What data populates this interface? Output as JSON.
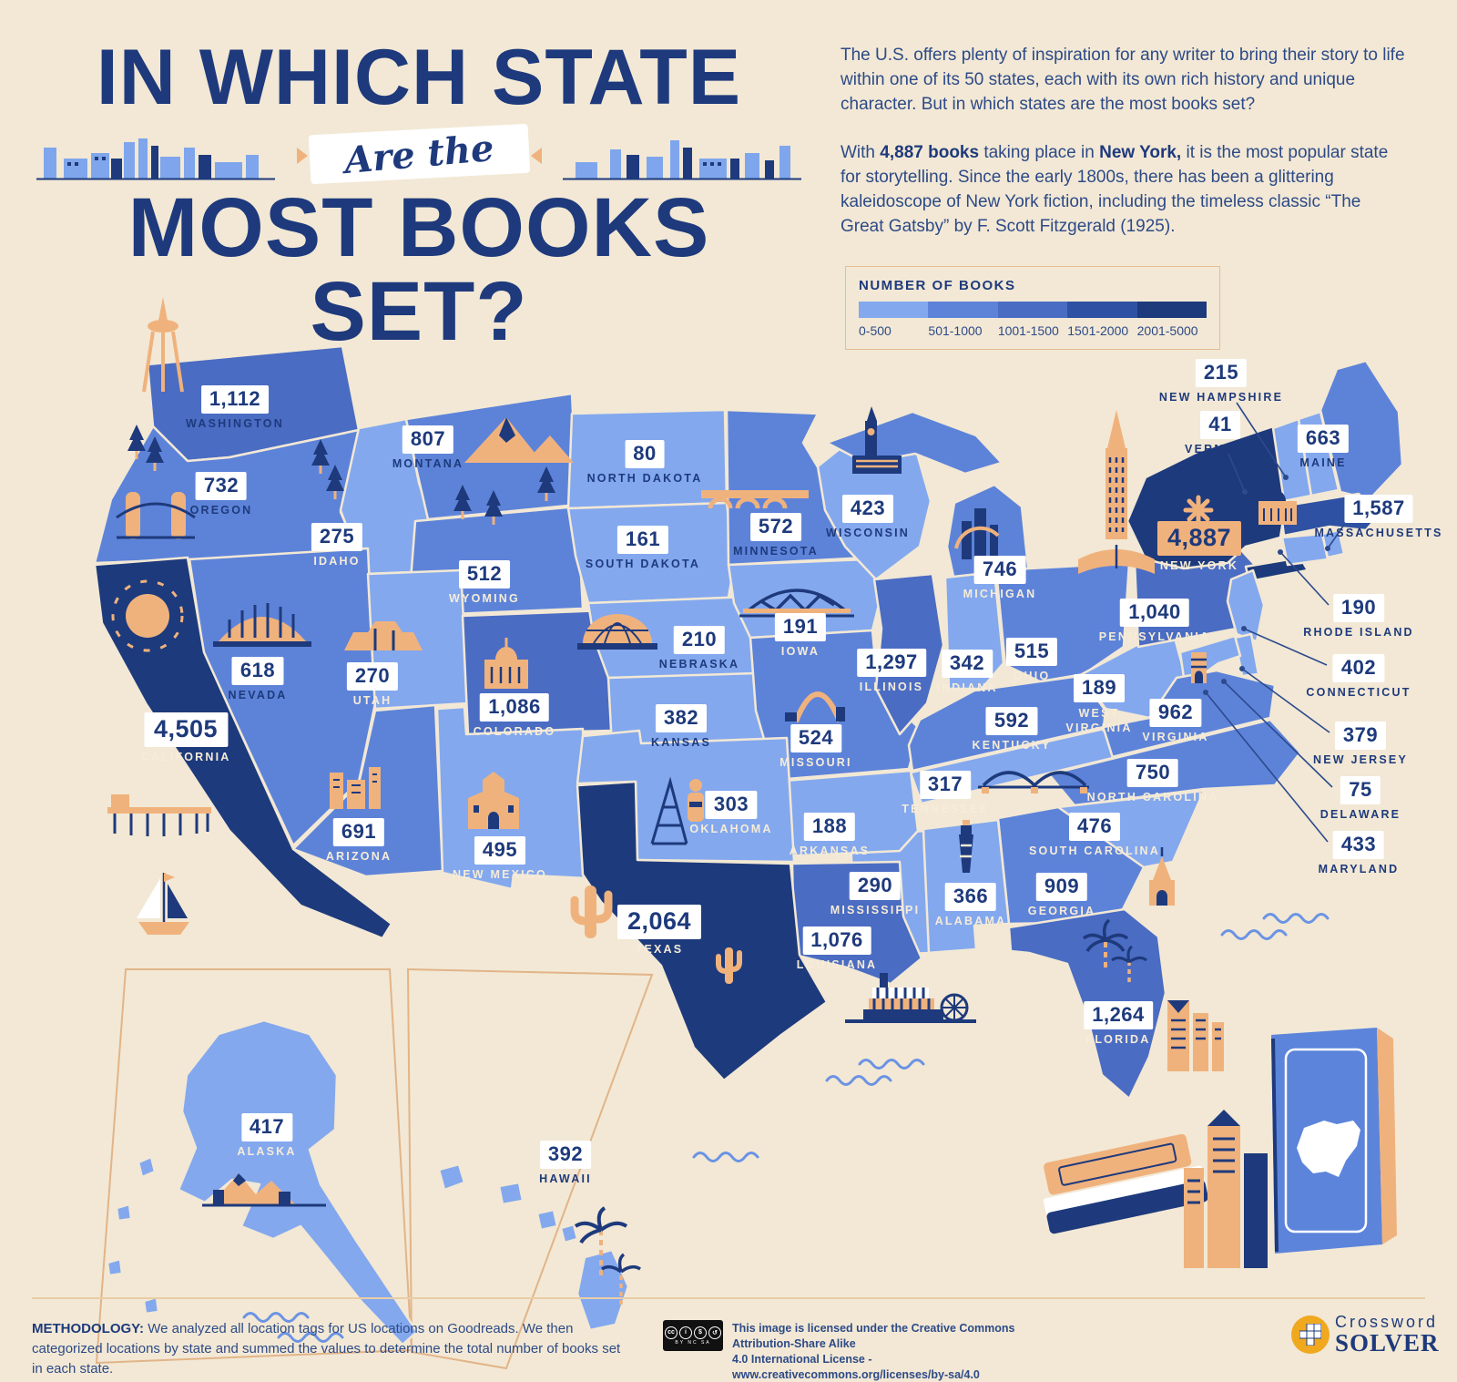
{
  "title": {
    "line1": "IN WHICH STATE",
    "banner": "Are the",
    "line2": "MOST BOOKS SET?"
  },
  "intro": {
    "p1": "The U.S. offers plenty of inspiration for any writer to bring their story to life within one of its 50 states, each with its own rich history and unique character. But in which states are the most books set?",
    "p2": {
      "pre": "With ",
      "bold1": "4,887 books",
      "mid": " taking place in ",
      "bold2": "New York,",
      "rest": " it is the most popular state for storytelling. Since the early 1800s, there has been a glittering kaleidoscope of New York fiction, including the timeless classic “The Great Gatsby” by F. Scott Fitzgerald (1925)."
    }
  },
  "legend": {
    "title": "NUMBER OF BOOKS",
    "buckets": [
      {
        "label": "0-500",
        "color": "#83a8ee"
      },
      {
        "label": "501-1000",
        "color": "#5d83d9"
      },
      {
        "label": "1001-1500",
        "color": "#4a6cc3"
      },
      {
        "label": "1501-2000",
        "color": "#2e51a3"
      },
      {
        "label": "2001-5000",
        "color": "#1d3a7c"
      }
    ]
  },
  "map": {
    "states": [
      {
        "id": "WA",
        "name": "WASHINGTON",
        "value": "1,112",
        "bucket": 2
      },
      {
        "id": "OR",
        "name": "OREGON",
        "value": "732",
        "bucket": 1
      },
      {
        "id": "CA",
        "name": "CALIFORNIA",
        "value": "4,505",
        "bucket": 4
      },
      {
        "id": "ID",
        "name": "IDAHO",
        "value": "275",
        "bucket": 0
      },
      {
        "id": "NV",
        "name": "NEVADA",
        "value": "618",
        "bucket": 1
      },
      {
        "id": "UT",
        "name": "UTAH",
        "value": "270",
        "bucket": 0
      },
      {
        "id": "AZ",
        "name": "ARIZONA",
        "value": "691",
        "bucket": 1
      },
      {
        "id": "MT",
        "name": "MONTANA",
        "value": "807",
        "bucket": 1
      },
      {
        "id": "WY",
        "name": "WYOMING",
        "value": "512",
        "bucket": 1
      },
      {
        "id": "CO",
        "name": "COLORADO",
        "value": "1,086",
        "bucket": 2
      },
      {
        "id": "NM",
        "name": "NEW MEXICO",
        "value": "495",
        "bucket": 0
      },
      {
        "id": "ND",
        "name": "NORTH DAKOTA",
        "value": "80",
        "bucket": 0
      },
      {
        "id": "SD",
        "name": "SOUTH DAKOTA",
        "value": "161",
        "bucket": 0
      },
      {
        "id": "NE",
        "name": "NEBRASKA",
        "value": "210",
        "bucket": 0
      },
      {
        "id": "KS",
        "name": "KANSAS",
        "value": "382",
        "bucket": 0
      },
      {
        "id": "OK",
        "name": "OKLAHOMA",
        "value": "303",
        "bucket": 0
      },
      {
        "id": "TX",
        "name": "TEXAS",
        "value": "2,064",
        "bucket": 4
      },
      {
        "id": "MN",
        "name": "MINNESOTA",
        "value": "572",
        "bucket": 1
      },
      {
        "id": "IA",
        "name": "IOWA",
        "value": "191",
        "bucket": 0
      },
      {
        "id": "MO",
        "name": "MISSOURI",
        "value": "524",
        "bucket": 1
      },
      {
        "id": "AR",
        "name": "ARKANSAS",
        "value": "188",
        "bucket": 0
      },
      {
        "id": "LA",
        "name": "LOUISIANA",
        "value": "1,076",
        "bucket": 2
      },
      {
        "id": "WI",
        "name": "WISCONSIN",
        "value": "423",
        "bucket": 0
      },
      {
        "id": "IL",
        "name": "ILLINOIS",
        "value": "1,297",
        "bucket": 2
      },
      {
        "id": "MI",
        "name": "MICHIGAN",
        "value": "746",
        "bucket": 1
      },
      {
        "id": "IN",
        "name": "INDIANA",
        "value": "342",
        "bucket": 0
      },
      {
        "id": "OH",
        "name": "OHIO",
        "value": "515",
        "bucket": 1
      },
      {
        "id": "KY",
        "name": "KENTUCKY",
        "value": "592",
        "bucket": 1
      },
      {
        "id": "TN",
        "name": "TENNESSEE",
        "value": "317",
        "bucket": 0
      },
      {
        "id": "MS",
        "name": "MISSISSIPPI",
        "value": "290",
        "bucket": 0
      },
      {
        "id": "AL",
        "name": "ALABAMA",
        "value": "366",
        "bucket": 0
      },
      {
        "id": "GA",
        "name": "GEORGIA",
        "value": "909",
        "bucket": 1
      },
      {
        "id": "FL",
        "name": "FLORIDA",
        "value": "1,264",
        "bucket": 2
      },
      {
        "id": "SC",
        "name": "SOUTH CAROLINA",
        "value": "476",
        "bucket": 0
      },
      {
        "id": "NC",
        "name": "NORTH CAROLINA",
        "value": "750",
        "bucket": 1
      },
      {
        "id": "VA",
        "name": "VIRGINIA",
        "value": "962",
        "bucket": 1
      },
      {
        "id": "WV",
        "name": "WEST VIRGINIA",
        "value": "189",
        "bucket": 0
      },
      {
        "id": "PA",
        "name": "PENNSYLVANIA",
        "value": "1,040",
        "bucket": 2
      },
      {
        "id": "NY",
        "name": "NEW YORK",
        "value": "4,887",
        "bucket": 4
      },
      {
        "id": "NJ",
        "name": "NEW JERSEY",
        "value": "379",
        "bucket": 0
      },
      {
        "id": "CT",
        "name": "CONNECTICUT",
        "value": "402",
        "bucket": 0
      },
      {
        "id": "RI",
        "name": "RHODE ISLAND",
        "value": "190",
        "bucket": 0
      },
      {
        "id": "MA",
        "name": "MASSACHUSETTS",
        "value": "1,587",
        "bucket": 3
      },
      {
        "id": "VT",
        "name": "VERMONT",
        "value": "41",
        "bucket": 0
      },
      {
        "id": "NH",
        "name": "NEW HAMPSHIRE",
        "value": "215",
        "bucket": 0
      },
      {
        "id": "ME",
        "name": "MAINE",
        "value": "663",
        "bucket": 1
      },
      {
        "id": "DE",
        "name": "DELAWARE",
        "value": "75",
        "bucket": 0
      },
      {
        "id": "MD",
        "name": "MARYLAND",
        "value": "433",
        "bucket": 0
      },
      {
        "id": "AK",
        "name": "ALASKA",
        "value": "417",
        "bucket": 0
      },
      {
        "id": "HI",
        "name": "HAWAII",
        "value": "392",
        "bucket": 0
      }
    ]
  },
  "footer": {
    "methodology_label": "METHODOLOGY:",
    "methodology_text": " We analyzed all location tags for US locations on Goodreads. We then categorized locations by state and summed the values to determine the total number of books set in each state.",
    "cc_sub": "BY NC SA",
    "license_line1": "This image is licensed under the Creative Commons Attribution-Share Alike",
    "license_line2": "4.0 International License - www.creativecommons.org/licenses/by-sa/4.0",
    "logo_line1": "Crossword",
    "logo_line2": "SOLVER"
  },
  "colors": {
    "background": "#f2e8d5",
    "navy": "#1e3a7c",
    "body_text": "#2d4a87",
    "accent_orange": "#f0b27d",
    "value_box": "#ffffff",
    "ny_value_box": "#f0b27d",
    "inset_border": "#e2b488",
    "logo_gold": "#f0a81f"
  }
}
